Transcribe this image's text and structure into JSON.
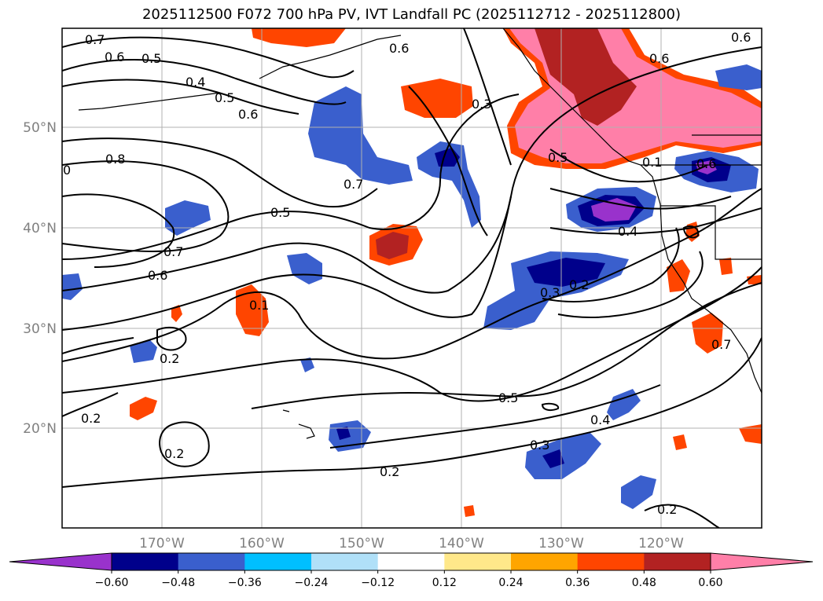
{
  "title": "2025112500 F072 700 hPa PV, IVT Landfall PC (2025112712 - 2025112800)",
  "map": {
    "lat_labels": [
      "50°N",
      "40°N",
      "30°N",
      "20°N"
    ],
    "lon_labels": [
      "170°W",
      "160°W",
      "150°W",
      "140°W",
      "130°W",
      "120°W"
    ],
    "contour_labels": [
      "0.7",
      "0.6",
      "0.5",
      "0.4",
      "0.5",
      "0.6",
      "0.6",
      "0.6",
      "0.3",
      "0.6",
      "0.8",
      "0",
      "0.7",
      "0.5",
      "0.7",
      "0.6",
      "0.1",
      "0.2",
      "0.2",
      "0.2",
      "0.5",
      "0.4",
      "0.3",
      "0.2",
      "0.2",
      "0.3",
      "0.2",
      "0.4",
      "0.1",
      "0.5",
      "0.7",
      "0.6"
    ],
    "shading_colors": {
      "purple": "#9932cc",
      "navy": "#00008b",
      "blue": "#3a5fcd",
      "cyan": "#00bfff",
      "light_blue": "#b0e0f8",
      "yellow": "#ffe88a",
      "orange": "#ffa500",
      "red_orange": "#ff4500",
      "dark_red": "#b22222",
      "pink": "#ff7fa8"
    }
  },
  "colorbar": {
    "ticks": [
      "−0.60",
      "−0.48",
      "−0.36",
      "−0.24",
      "−0.12",
      "0.12",
      "0.24",
      "0.36",
      "0.48",
      "0.60"
    ],
    "colors": [
      "#9932cc",
      "#00008b",
      "#3a5fcd",
      "#00bfff",
      "#b0e0f8",
      "#ffffff",
      "#ffe88a",
      "#ffa500",
      "#ff4500",
      "#b22222",
      "#ff7fa8"
    ]
  }
}
